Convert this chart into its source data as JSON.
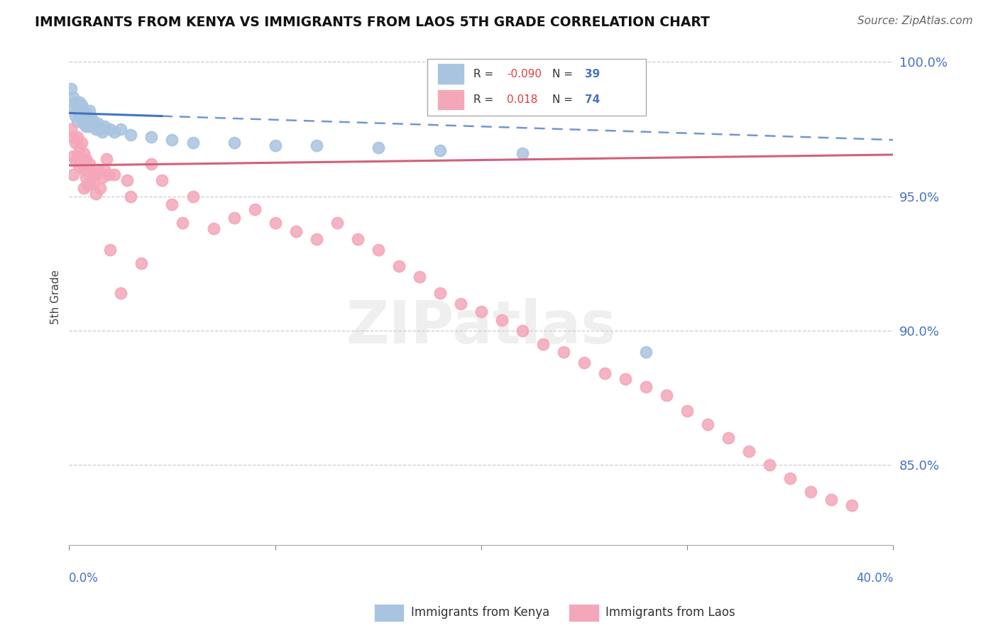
{
  "title": "IMMIGRANTS FROM KENYA VS IMMIGRANTS FROM LAOS 5TH GRADE CORRELATION CHART",
  "source": "Source: ZipAtlas.com",
  "ylabel": "5th Grade",
  "ytick_vals": [
    1.0,
    0.95,
    0.9,
    0.85
  ],
  "ytick_labels": [
    "100.0%",
    "95.0%",
    "90.0%",
    "85.0%"
  ],
  "xlim": [
    0.0,
    0.4
  ],
  "ylim": [
    0.82,
    1.005
  ],
  "legend_r_kenya": "-0.090",
  "legend_n_kenya": "39",
  "legend_r_laos": "0.018",
  "legend_n_laos": "74",
  "kenya_color": "#a8c4e0",
  "laos_color": "#f4a7b9",
  "kenya_line_color": "#4472c4",
  "laos_line_color": "#d4607a",
  "grid_color": "#cccccc",
  "kenya_x": [
    0.001,
    0.002,
    0.002,
    0.003,
    0.003,
    0.004,
    0.004,
    0.005,
    0.005,
    0.006,
    0.006,
    0.007,
    0.007,
    0.008,
    0.008,
    0.009,
    0.01,
    0.01,
    0.011,
    0.012,
    0.013,
    0.014,
    0.015,
    0.016,
    0.017,
    0.02,
    0.022,
    0.025,
    0.03,
    0.04,
    0.05,
    0.06,
    0.08,
    0.1,
    0.12,
    0.15,
    0.18,
    0.22,
    0.28
  ],
  "kenya_y": [
    0.99,
    0.987,
    0.983,
    0.985,
    0.98,
    0.983,
    0.978,
    0.985,
    0.98,
    0.984,
    0.979,
    0.982,
    0.977,
    0.981,
    0.976,
    0.979,
    0.982,
    0.976,
    0.979,
    0.978,
    0.975,
    0.977,
    0.975,
    0.974,
    0.976,
    0.975,
    0.974,
    0.975,
    0.973,
    0.972,
    0.971,
    0.97,
    0.97,
    0.969,
    0.969,
    0.968,
    0.967,
    0.966,
    0.892
  ],
  "laos_x": [
    0.001,
    0.002,
    0.002,
    0.002,
    0.003,
    0.003,
    0.004,
    0.004,
    0.005,
    0.005,
    0.006,
    0.006,
    0.007,
    0.007,
    0.007,
    0.008,
    0.008,
    0.009,
    0.009,
    0.01,
    0.01,
    0.011,
    0.012,
    0.013,
    0.013,
    0.014,
    0.015,
    0.016,
    0.017,
    0.018,
    0.019,
    0.02,
    0.022,
    0.025,
    0.028,
    0.03,
    0.035,
    0.04,
    0.045,
    0.05,
    0.055,
    0.06,
    0.07,
    0.08,
    0.09,
    0.1,
    0.11,
    0.12,
    0.13,
    0.14,
    0.15,
    0.16,
    0.17,
    0.18,
    0.19,
    0.2,
    0.21,
    0.22,
    0.23,
    0.24,
    0.25,
    0.26,
    0.27,
    0.28,
    0.29,
    0.3,
    0.31,
    0.32,
    0.33,
    0.34,
    0.35,
    0.36,
    0.37,
    0.38
  ],
  "laos_y": [
    0.975,
    0.972,
    0.965,
    0.958,
    0.97,
    0.963,
    0.972,
    0.965,
    0.968,
    0.961,
    0.97,
    0.963,
    0.966,
    0.96,
    0.953,
    0.964,
    0.957,
    0.961,
    0.954,
    0.962,
    0.955,
    0.958,
    0.955,
    0.958,
    0.951,
    0.96,
    0.953,
    0.957,
    0.96,
    0.964,
    0.958,
    0.93,
    0.958,
    0.914,
    0.956,
    0.95,
    0.925,
    0.962,
    0.956,
    0.947,
    0.94,
    0.95,
    0.938,
    0.942,
    0.945,
    0.94,
    0.937,
    0.934,
    0.94,
    0.934,
    0.93,
    0.924,
    0.92,
    0.914,
    0.91,
    0.907,
    0.904,
    0.9,
    0.895,
    0.892,
    0.888,
    0.884,
    0.882,
    0.879,
    0.876,
    0.87,
    0.865,
    0.86,
    0.855,
    0.85,
    0.845,
    0.84,
    0.837,
    0.835
  ],
  "kenya_line_x0": 0.0,
  "kenya_line_x_solid_end": 0.045,
  "kenya_line_x1": 0.4,
  "kenya_line_y0": 0.981,
  "kenya_line_y1": 0.971,
  "laos_line_x0": 0.0,
  "laos_line_x1": 0.4,
  "laos_line_y0": 0.9615,
  "laos_line_y1": 0.9655
}
